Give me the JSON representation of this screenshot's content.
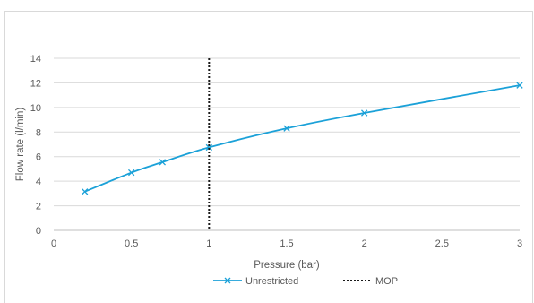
{
  "chart_data": {
    "type": "line",
    "title": "",
    "xlabel": "Pressure (bar)",
    "ylabel": "Flow rate (l/min)",
    "xlim": [
      0,
      3
    ],
    "ylim": [
      0,
      14
    ],
    "xticks": [
      0,
      0.5,
      1,
      1.5,
      2,
      2.5,
      3
    ],
    "yticks": [
      0,
      2,
      4,
      6,
      8,
      10,
      12,
      14
    ],
    "grid": "horizontal",
    "legend": "bottom",
    "series": [
      {
        "name": "Unrestricted",
        "style": "solid-with-x-markers",
        "color": "#1ba1d8",
        "points": [
          [
            0.2,
            3.15
          ],
          [
            0.5,
            4.7
          ],
          [
            0.7,
            5.55
          ],
          [
            1.0,
            6.75
          ],
          [
            1.5,
            8.3
          ],
          [
            2.0,
            9.55
          ],
          [
            3.0,
            11.8
          ]
        ]
      },
      {
        "name": "MOP",
        "style": "dotted-vertical",
        "color": "#1a1a1a",
        "x": 1
      }
    ]
  }
}
